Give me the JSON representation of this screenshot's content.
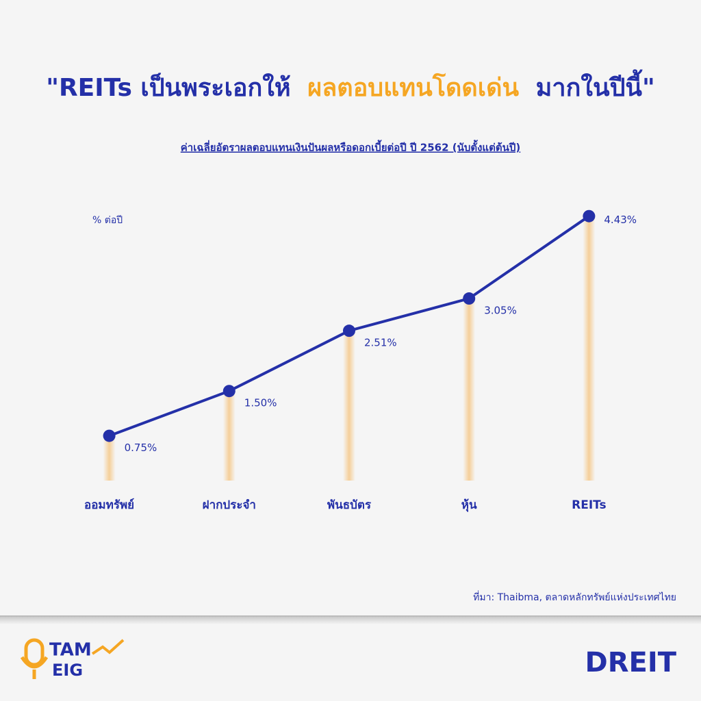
{
  "chart_data": {
    "type": "line",
    "title_parts": [
      "\"REITs เป็นพระเอกให้",
      "ผลตอบแทนโดดเด่น",
      "มากในปีนี้\""
    ],
    "subtitle": "ค่าเฉลี่ยอัตราผลตอบแทนเงินปันผลหรือดอกเบี้ยต่อปี ปี 2562 (นับตั้งแต่ต้นปี)",
    "y_label": "% ต่อปี",
    "categories": [
      "ออมทรัพย์",
      "ฝากประจำ",
      "พันธบัตร",
      "หุ้น",
      "REITs"
    ],
    "values": [
      0.75,
      1.5,
      2.51,
      3.05,
      4.43
    ],
    "value_labels": [
      "0.75%",
      "1.50%",
      "2.51%",
      "3.05%",
      "4.43%"
    ],
    "color": "#2430a8",
    "ylim": [
      0,
      5
    ],
    "source": "ที่มา: Thaibma, ตลาดหลักทรัพย์แห่งประเทศไทย",
    "logos": [
      "TAM",
      "EIG",
      "DREIT"
    ]
  }
}
